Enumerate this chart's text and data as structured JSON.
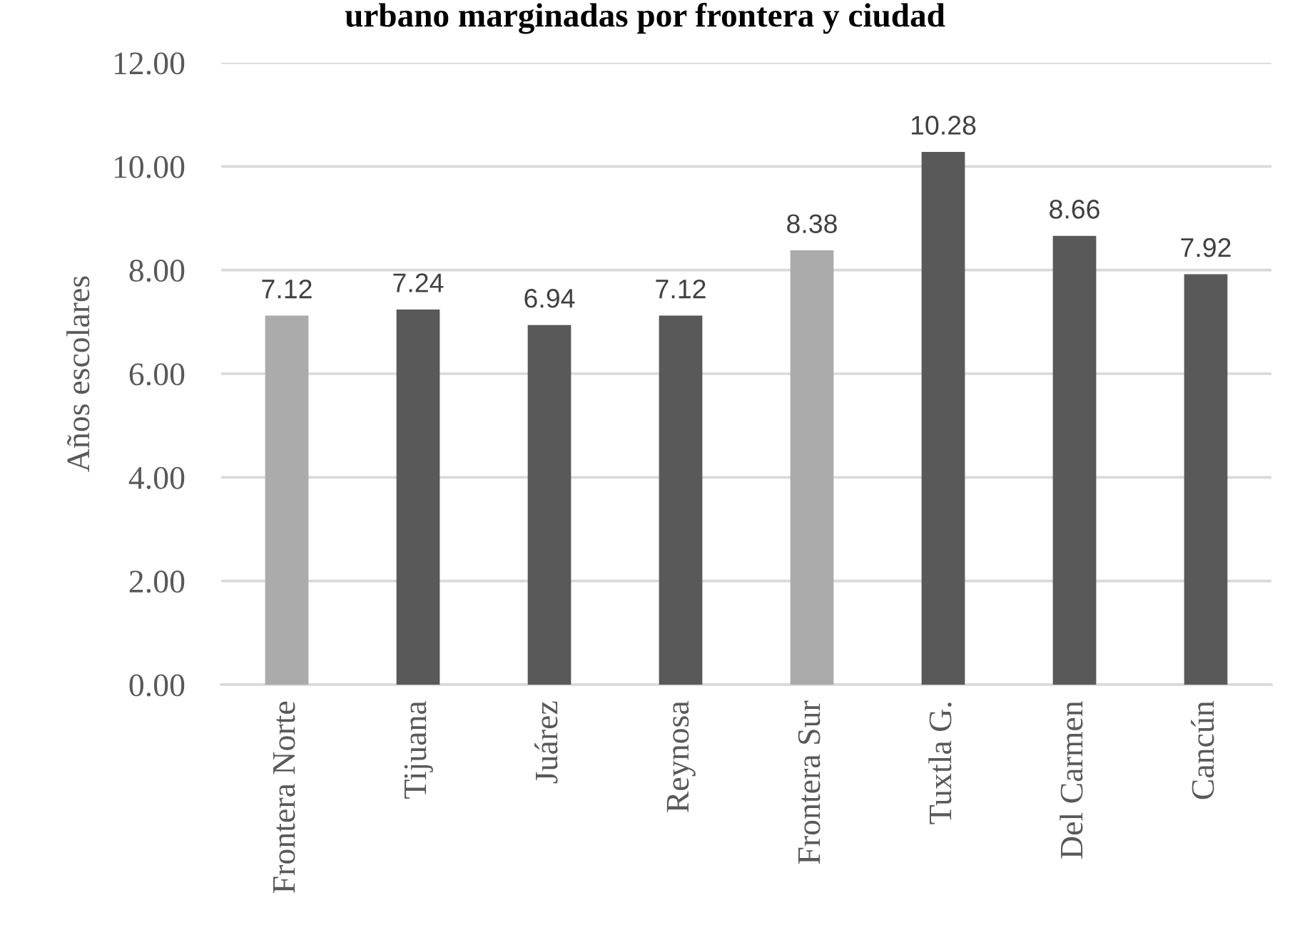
{
  "chart_data": {
    "type": "bar",
    "title": "urbano marginadas por frontera y ciudad",
    "ylabel": "Años escolares",
    "categories": [
      "Frontera Norte",
      "Tijuana",
      "Juárez",
      "Reynosa",
      "Frontera Sur",
      "Tuxtla G.",
      "Del Carmen",
      "Cancún"
    ],
    "values": [
      7.12,
      7.24,
      6.94,
      7.12,
      8.38,
      10.28,
      8.66,
      7.92
    ],
    "colors": [
      "#ababab",
      "#595959",
      "#595959",
      "#595959",
      "#ababab",
      "#595959",
      "#595959",
      "#595959"
    ],
    "ylim": [
      0,
      12
    ],
    "yticks": [
      {
        "value": 0,
        "label": "0.00"
      },
      {
        "value": 2,
        "label": "2.00"
      },
      {
        "value": 4,
        "label": "4.00"
      },
      {
        "value": 6,
        "label": "6.00"
      },
      {
        "value": 8,
        "label": "8.00"
      },
      {
        "value": 10,
        "label": "10.00"
      },
      {
        "value": 12,
        "label": "12.00"
      }
    ],
    "grid": "y",
    "data_labels": true
  }
}
